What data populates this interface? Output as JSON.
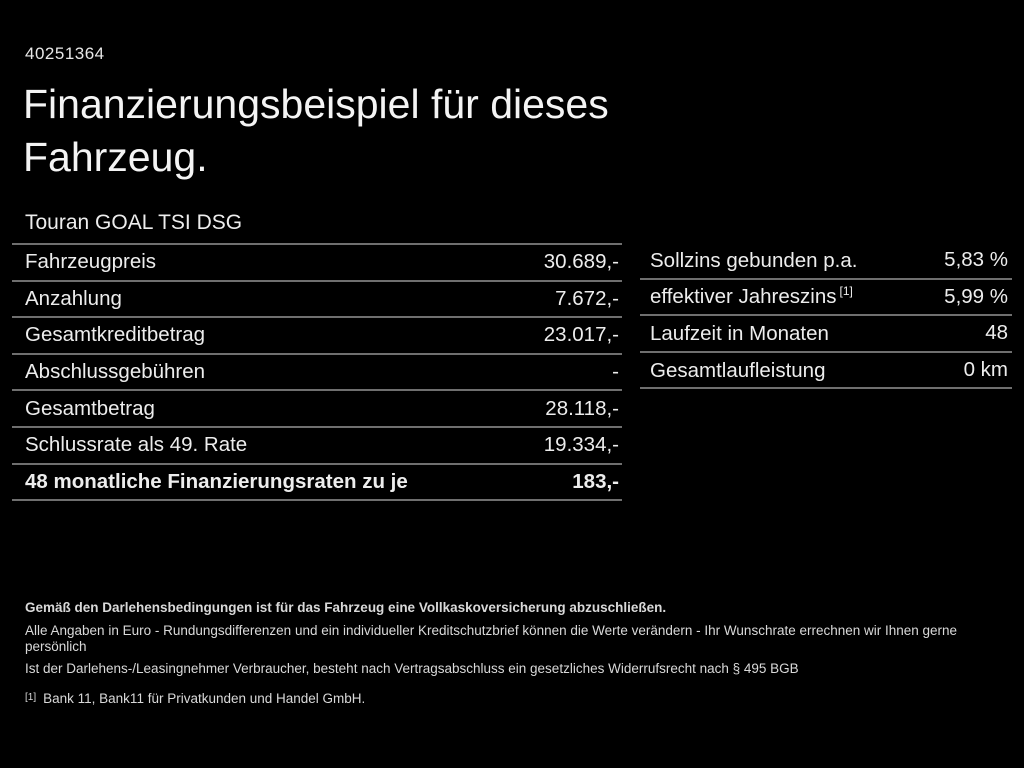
{
  "page": {
    "background_color": "#000000",
    "text_color": "#ededed",
    "divider_color": "#6f6f6f"
  },
  "header": {
    "reference_number": "40251364",
    "title_line1": "Finanzierungsbeispiel für dieses",
    "title_line2": "Fahrzeug.",
    "vehicle_model": "Touran GOAL TSI DSG"
  },
  "left_table": {
    "rows": [
      {
        "label": "Fahrzeugpreis",
        "value": "30.689,-"
      },
      {
        "label": "Anzahlung",
        "value": "7.672,-"
      },
      {
        "label": "Gesamtkreditbetrag",
        "value": "23.017,-"
      },
      {
        "label": "Abschlussgebühren",
        "value": "-"
      },
      {
        "label": "Gesamtbetrag",
        "value": "28.118,-"
      },
      {
        "label": "Schlussrate als 49. Rate",
        "value": "19.334,-"
      },
      {
        "label": "48 monatliche Finanzierungsraten zu je",
        "value": "183,-"
      }
    ]
  },
  "right_table": {
    "rows": [
      {
        "label": "Sollzins gebunden p.a.",
        "sup": "",
        "value": "5,83 %"
      },
      {
        "label": "effektiver Jahreszins",
        "sup": "[1]",
        "value": "5,99 %"
      },
      {
        "label": "Laufzeit in Monaten",
        "sup": "",
        "value": "48"
      },
      {
        "label": "Gesamtlaufleistung",
        "sup": "",
        "value": "0 km"
      }
    ]
  },
  "footer": {
    "line_bold": "Gemäß den Darlehensbedingungen ist für das Fahrzeug eine Vollkaskoversicherung abzuschließen.",
    "line2": "Alle Angaben in Euro - Rundungsdifferenzen und ein individueller Kreditschutzbrief können die Werte verändern - Ihr Wunschrate errechnen wir Ihnen gerne persönlich",
    "line3": "Ist der Darlehens-/Leasingnehmer Verbraucher, besteht nach Vertragsabschluss ein gesetzliches Widerrufsrecht nach § 495 BGB",
    "footnote_marker": "[1]",
    "footnote_text": "Bank 11, Bank11 für Privatkunden und Handel GmbH."
  }
}
